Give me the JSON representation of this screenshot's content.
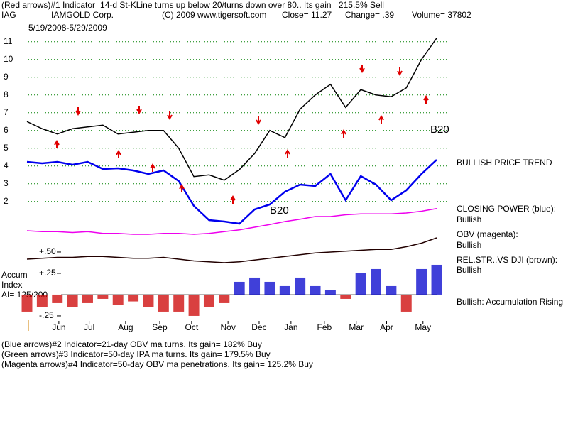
{
  "header": {
    "indicator_note": "(Red arrows)#1 Indicator=14-d St-KLine turns up below 20/turns down over 80.. Its gain= 215.5% Sell",
    "ticker": "IAG",
    "company": "IAMGOLD Corp.",
    "copyright": "(C) 2009 www.tigersoft.com",
    "close": "Close= 11.27",
    "change": "Change= .39",
    "volume": "Volume= 37802",
    "date_range": "5/19/2008-5/29/2009"
  },
  "chart_data": {
    "type": "line",
    "x": [
      0,
      2,
      4,
      6,
      8,
      10,
      12,
      14,
      16,
      18,
      20,
      22,
      24,
      26,
      28,
      30,
      32,
      34,
      36,
      38,
      40,
      42,
      44,
      46,
      48,
      50,
      52,
      54
    ],
    "xlim": [
      0,
      54
    ],
    "xticks": [
      {
        "value": 4.2,
        "label": "Jun"
      },
      {
        "value": 8.2,
        "label": "Jul"
      },
      {
        "value": 13,
        "label": "Aug"
      },
      {
        "value": 17.5,
        "label": "Sep"
      },
      {
        "value": 21.7,
        "label": "Oct"
      },
      {
        "value": 26.5,
        "label": "Nov"
      },
      {
        "value": 30.6,
        "label": "Dec"
      },
      {
        "value": 34.8,
        "label": "Jan"
      },
      {
        "value": 39.2,
        "label": "Feb"
      },
      {
        "value": 43.4,
        "label": "Mar"
      },
      {
        "value": 47.4,
        "label": "Apr"
      },
      {
        "value": 52.2,
        "label": "May"
      }
    ],
    "ylim": [
      -5,
      11.75
    ],
    "yticks": [
      2,
      3,
      4,
      5,
      6,
      7,
      8,
      9,
      10,
      11
    ],
    "y2lim": [
      -0.365,
      3.125
    ],
    "y2ticks": [
      {
        "value": 0.5,
        "label": "+.50"
      },
      {
        "value": 0.25,
        "label": "+.25"
      },
      {
        "value": -0.25,
        "label": "-.25"
      }
    ],
    "grid": true,
    "series": [
      {
        "color": "#000000",
        "values": [
          6.5,
          6.1,
          5.8,
          6.1,
          6.2,
          6.3,
          5.8,
          5.9,
          6.0,
          6.0,
          5.0,
          3.4,
          3.5,
          3.2,
          3.8,
          4.7,
          6.0,
          5.6,
          7.2,
          8.0,
          8.6,
          7.3,
          8.3,
          8.0,
          7.9,
          8.4,
          10.0,
          11.2
        ]
      },
      {
        "color": "#0000ee",
        "values": [
          4.23,
          4.15,
          4.23,
          4.07,
          4.23,
          3.83,
          3.87,
          3.75,
          3.55,
          3.75,
          3.15,
          1.75,
          0.95,
          0.87,
          0.75,
          1.55,
          1.83,
          2.55,
          2.95,
          2.87,
          3.55,
          2.07,
          3.43,
          2.95,
          2.07,
          2.63,
          3.55,
          4.35
        ]
      },
      {
        "color": "#ee00ee",
        "values": [
          0.35,
          0.3,
          0.3,
          0.25,
          0.3,
          0.2,
          0.2,
          0.15,
          0.15,
          0.2,
          0.2,
          0.15,
          0.2,
          0.3,
          0.4,
          0.55,
          0.7,
          0.87,
          1.0,
          1.15,
          1.15,
          1.25,
          1.3,
          1.3,
          1.3,
          1.35,
          1.45,
          1.6
        ]
      },
      {
        "color": "#220000",
        "values": [
          -1.25,
          -1.2,
          -1.15,
          -1.15,
          -1.1,
          -1.1,
          -1.15,
          -1.2,
          -1.2,
          -1.15,
          -1.25,
          -1.35,
          -1.4,
          -1.45,
          -1.4,
          -1.3,
          -1.2,
          -1.1,
          -1.0,
          -0.9,
          -0.85,
          -0.8,
          -0.75,
          -0.7,
          -0.7,
          -0.55,
          -0.35,
          -0.05
        ]
      },
      {
        "kind": "bar",
        "axis": "y2",
        "color": "#0000cc",
        "negative_color": "#cc0000",
        "values": [
          -0.2,
          -0.15,
          -0.1,
          -0.15,
          -0.1,
          -0.05,
          -0.12,
          -0.08,
          -0.15,
          -0.2,
          -0.2,
          -0.25,
          -0.15,
          -0.1,
          0.15,
          0.2,
          0.15,
          0.1,
          0.2,
          0.1,
          0.05,
          -0.05,
          0.25,
          0.3,
          0.1,
          -0.2,
          0.3,
          0.35
        ]
      }
    ],
    "annotations": [
      "B20",
      "B20"
    ]
  },
  "side_labels": [
    "BULLISH PRICE TREND",
    "CLOSING POWER (blue):",
    "Bullish",
    "OBV (magenta):",
    "Bullish",
    "REL.STR..VS DJI (brown):",
    "Bullish",
    "Bullish: Accumulation Rising"
  ],
  "accum_labels": [
    "Accum",
    "Index",
    "AI= 125/200"
  ],
  "footer": [
    "(Blue arrows)#2 Indicator=21-day OBV ma turns. Its gain= 182% Buy",
    "(Green arrows)#3 Indicator=50-day IPA ma turns. Its gain= 179.5% Buy",
    "(Magenta arrows)#4 Indicator=50-day OBV ma penetrations. Its gain= 125.2% Buy"
  ]
}
